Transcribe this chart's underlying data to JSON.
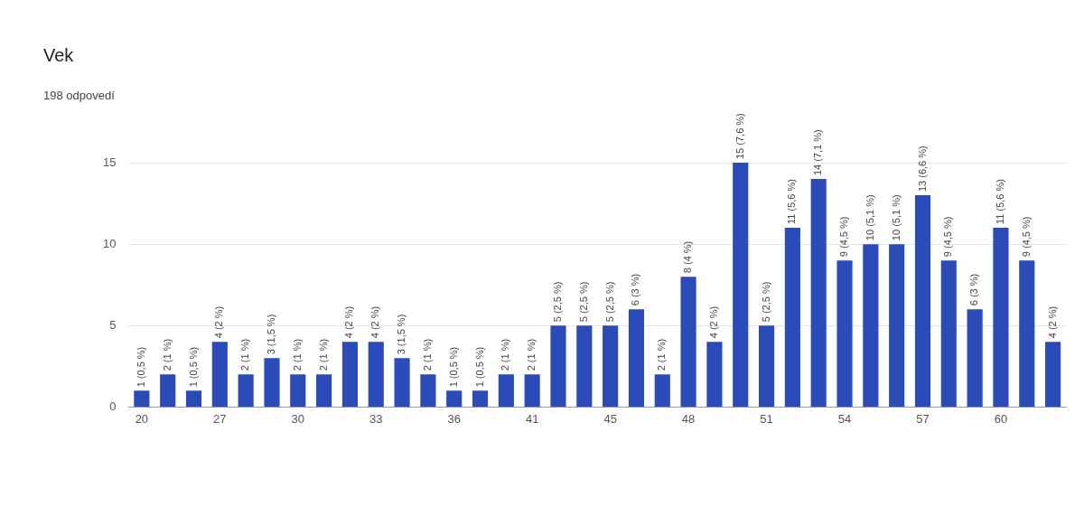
{
  "chart_data": {
    "type": "bar",
    "title": "Vek",
    "subtitle": "198 odpovedí",
    "categories": [
      "20",
      null,
      null,
      "27",
      null,
      null,
      "30",
      null,
      null,
      "33",
      null,
      null,
      "36",
      null,
      null,
      "41",
      null,
      null,
      "45",
      null,
      null,
      "48",
      null,
      null,
      "51",
      null,
      null,
      "54",
      null,
      null,
      "57",
      null,
      null,
      "60",
      null,
      null
    ],
    "values": [
      1,
      2,
      1,
      4,
      2,
      3,
      2,
      2,
      4,
      4,
      3,
      2,
      1,
      1,
      2,
      2,
      5,
      5,
      5,
      6,
      2,
      8,
      4,
      15,
      5,
      11,
      14,
      9,
      10,
      10,
      13,
      9,
      6,
      11,
      9,
      4
    ],
    "value_labels": [
      "1 (0,5 %)",
      "2 (1 %)",
      "1 (0,5 %)",
      "4 (2 %)",
      "2 (1 %)",
      "3 (1,5 %)",
      "2 (1 %)",
      "2 (1 %)",
      "4 (2 %)",
      "4 (2 %)",
      "3 (1,5 %)",
      "2 (1 %)",
      "1 (0,5 %)",
      "1 (0,5 %)",
      "2 (1 %)",
      "2 (1 %)",
      "5 (2,5 %)",
      "5 (2,5 %)",
      "5 (2,5 %)",
      "6 (3 %)",
      "2 (1 %)",
      "8 (4 %)",
      "4 (2 %)",
      "15 (7,6 %)",
      "5 (2,5 %)",
      "11 (5,6 %)",
      "14 (7,1 %)",
      "9 (4,5 %)",
      "10 (5,1 %)",
      "10 (5,1 %)",
      "13 (6,6 %)",
      "9 (4,5 %)",
      "6 (3 %)",
      "11 (5,6 %)",
      "9 (4,5 %)",
      "4 (2 %)"
    ],
    "color": "#2b4bb8",
    "ylim": [
      0,
      15
    ],
    "yticks": [
      0,
      5,
      10,
      15
    ],
    "grid": "y",
    "legend": false
  }
}
